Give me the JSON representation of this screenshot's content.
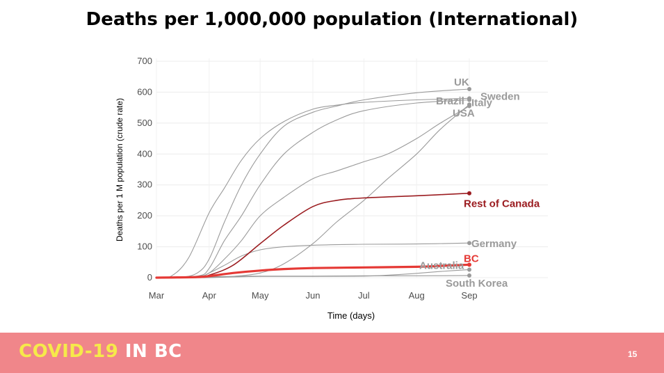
{
  "slide": {
    "title": "Deaths per 1,000,000 population (International)",
    "footer_brand_a": "COVID-19",
    "footer_brand_b": " IN BC",
    "page_number": "15",
    "footer_color": "#f0868a",
    "brand_color": "#f6e94a"
  },
  "chart_data": {
    "type": "line",
    "title": "Deaths per 1,000,000 population (International)",
    "xlabel": "Time (days)",
    "ylabel": "Deaths per 1 M population (crude rate)",
    "x_ticks": [
      "Mar",
      "Apr",
      "May",
      "Jun",
      "Jul",
      "Aug",
      "Sep"
    ],
    "y_ticks": [
      0,
      100,
      200,
      300,
      400,
      500,
      600,
      700
    ],
    "ylim": [
      0,
      700
    ],
    "xlim": [
      "2020-03-01",
      "2020-09-01"
    ],
    "grid": true,
    "legend": "none (direct labels at line ends)",
    "series": [
      {
        "name": "UK",
        "color": "#9a9a9a",
        "label_color": "#9a9a9a",
        "points": [
          [
            "2020-03-01",
            0
          ],
          [
            "2020-03-15",
            1
          ],
          [
            "2020-03-25",
            15
          ],
          [
            "2020-04-01",
            60
          ],
          [
            "2020-04-10",
            180
          ],
          [
            "2020-04-20",
            300
          ],
          [
            "2020-05-01",
            400
          ],
          [
            "2020-05-15",
            490
          ],
          [
            "2020-06-01",
            535
          ],
          [
            "2020-06-15",
            555
          ],
          [
            "2020-07-01",
            575
          ],
          [
            "2020-08-01",
            598
          ],
          [
            "2020-09-01",
            610
          ]
        ]
      },
      {
        "name": "Italy",
        "color": "#9a9a9a",
        "label_color": "#9a9a9a",
        "points": [
          [
            "2020-03-01",
            0
          ],
          [
            "2020-03-10",
            6
          ],
          [
            "2020-03-20",
            65
          ],
          [
            "2020-04-01",
            210
          ],
          [
            "2020-04-10",
            290
          ],
          [
            "2020-04-20",
            380
          ],
          [
            "2020-05-01",
            450
          ],
          [
            "2020-05-15",
            505
          ],
          [
            "2020-06-01",
            545
          ],
          [
            "2020-06-15",
            558
          ],
          [
            "2020-07-01",
            567
          ],
          [
            "2020-08-01",
            575
          ],
          [
            "2020-09-01",
            580
          ]
        ]
      },
      {
        "name": "Brazil",
        "color": "#9a9a9a",
        "label_color": "#9a9a9a",
        "points": [
          [
            "2020-03-01",
            0
          ],
          [
            "2020-04-01",
            0
          ],
          [
            "2020-04-15",
            4
          ],
          [
            "2020-05-01",
            15
          ],
          [
            "2020-05-15",
            45
          ],
          [
            "2020-06-01",
            110
          ],
          [
            "2020-06-15",
            180
          ],
          [
            "2020-07-01",
            250
          ],
          [
            "2020-07-15",
            320
          ],
          [
            "2020-08-01",
            400
          ],
          [
            "2020-08-15",
            480
          ],
          [
            "2020-09-01",
            560
          ]
        ]
      },
      {
        "name": "Sweden",
        "color": "#9a9a9a",
        "label_color": "#9a9a9a",
        "points": [
          [
            "2020-03-01",
            0
          ],
          [
            "2020-03-25",
            5
          ],
          [
            "2020-04-01",
            30
          ],
          [
            "2020-04-10",
            120
          ],
          [
            "2020-04-20",
            200
          ],
          [
            "2020-05-01",
            300
          ],
          [
            "2020-05-15",
            400
          ],
          [
            "2020-06-01",
            470
          ],
          [
            "2020-06-15",
            510
          ],
          [
            "2020-07-01",
            540
          ],
          [
            "2020-08-01",
            565
          ],
          [
            "2020-09-01",
            575
          ]
        ]
      },
      {
        "name": "USA",
        "color": "#9a9a9a",
        "label_color": "#9a9a9a",
        "points": [
          [
            "2020-03-01",
            0
          ],
          [
            "2020-03-25",
            5
          ],
          [
            "2020-04-01",
            15
          ],
          [
            "2020-04-10",
            60
          ],
          [
            "2020-04-20",
            120
          ],
          [
            "2020-05-01",
            200
          ],
          [
            "2020-05-15",
            260
          ],
          [
            "2020-06-01",
            320
          ],
          [
            "2020-06-15",
            345
          ],
          [
            "2020-07-01",
            375
          ],
          [
            "2020-07-15",
            400
          ],
          [
            "2020-08-01",
            450
          ],
          [
            "2020-08-15",
            500
          ],
          [
            "2020-09-01",
            555
          ]
        ]
      },
      {
        "name": "Rest of Canada",
        "color": "#9b1c20",
        "label_color": "#9b1c20",
        "points": [
          [
            "2020-03-01",
            0
          ],
          [
            "2020-03-25",
            2
          ],
          [
            "2020-04-01",
            8
          ],
          [
            "2020-04-15",
            40
          ],
          [
            "2020-05-01",
            110
          ],
          [
            "2020-05-15",
            170
          ],
          [
            "2020-06-01",
            230
          ],
          [
            "2020-06-15",
            250
          ],
          [
            "2020-07-01",
            258
          ],
          [
            "2020-08-01",
            265
          ],
          [
            "2020-09-01",
            273
          ]
        ]
      },
      {
        "name": "Germany",
        "color": "#9a9a9a",
        "label_color": "#9a9a9a",
        "points": [
          [
            "2020-03-01",
            0
          ],
          [
            "2020-03-25",
            3
          ],
          [
            "2020-04-01",
            15
          ],
          [
            "2020-04-10",
            40
          ],
          [
            "2020-04-20",
            70
          ],
          [
            "2020-05-01",
            90
          ],
          [
            "2020-05-15",
            100
          ],
          [
            "2020-06-01",
            105
          ],
          [
            "2020-07-01",
            108
          ],
          [
            "2020-08-01",
            109
          ],
          [
            "2020-09-01",
            112
          ]
        ]
      },
      {
        "name": "BC",
        "color": "#e53935",
        "label_color": "#e53935",
        "points": [
          [
            "2020-03-01",
            0
          ],
          [
            "2020-03-25",
            2
          ],
          [
            "2020-04-01",
            5
          ],
          [
            "2020-04-15",
            15
          ],
          [
            "2020-05-01",
            23
          ],
          [
            "2020-05-15",
            28
          ],
          [
            "2020-06-01",
            31
          ],
          [
            "2020-07-01",
            33
          ],
          [
            "2020-08-01",
            35
          ],
          [
            "2020-08-15",
            38
          ],
          [
            "2020-09-01",
            42
          ]
        ]
      },
      {
        "name": "Australia",
        "color": "#9a9a9a",
        "label_color": "#9a9a9a",
        "points": [
          [
            "2020-03-01",
            0
          ],
          [
            "2020-04-01",
            1
          ],
          [
            "2020-05-01",
            4
          ],
          [
            "2020-06-01",
            4
          ],
          [
            "2020-07-01",
            5
          ],
          [
            "2020-07-15",
            8
          ],
          [
            "2020-08-01",
            14
          ],
          [
            "2020-08-15",
            20
          ],
          [
            "2020-09-01",
            26
          ]
        ]
      },
      {
        "name": "South Korea",
        "color": "#9a9a9a",
        "label_color": "#9a9a9a",
        "points": [
          [
            "2020-03-01",
            0
          ],
          [
            "2020-03-15",
            1
          ],
          [
            "2020-04-01",
            3
          ],
          [
            "2020-05-01",
            5
          ],
          [
            "2020-06-01",
            5
          ],
          [
            "2020-07-01",
            6
          ],
          [
            "2020-08-01",
            6
          ],
          [
            "2020-09-01",
            7
          ]
        ]
      }
    ]
  }
}
